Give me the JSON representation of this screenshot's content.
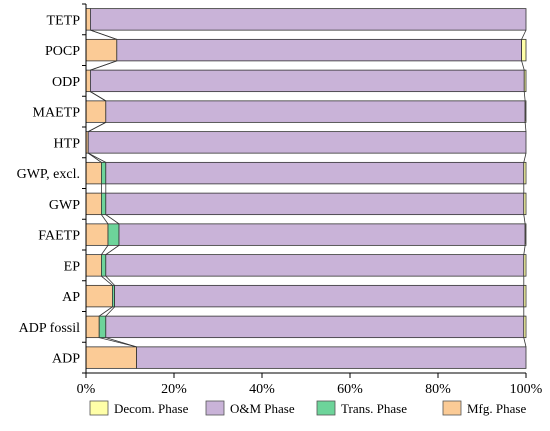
{
  "chart_data": {
    "type": "bar",
    "orientation": "horizontal",
    "stacked": true,
    "categories": [
      "TETP",
      "POCP",
      "ODP",
      "MAETP",
      "HTP",
      "GWP, excl.",
      "GWP",
      "FAETP",
      "EP",
      "AP",
      "ADP fossil",
      "ADP"
    ],
    "series": [
      {
        "name": "Mfg. Phase",
        "color": "#fbcb96",
        "values": [
          1.0,
          7.0,
          1.0,
          4.5,
          0.5,
          3.5,
          3.5,
          5.0,
          3.5,
          6.0,
          3.0,
          11.5
        ]
      },
      {
        "name": "Trans. Phase",
        "color": "#6dd49a",
        "values": [
          0.0,
          0.0,
          0.0,
          0.0,
          0.0,
          1.0,
          1.0,
          2.5,
          1.0,
          0.5,
          1.5,
          0.0
        ]
      },
      {
        "name": "O&M Phase",
        "color": "#c9b3d8",
        "values": [
          99.0,
          92.0,
          98.6,
          95.3,
          99.5,
          95.0,
          95.0,
          92.3,
          95.0,
          93.0,
          95.0,
          88.5
        ]
      },
      {
        "name": "Decom. Phase",
        "color": "#ffffa8",
        "values": [
          0.0,
          1.0,
          0.4,
          0.2,
          0.0,
          0.5,
          0.5,
          0.2,
          0.5,
          0.5,
          0.5,
          0.0
        ]
      }
    ],
    "x_ticks": [
      "0%",
      "20%",
      "40%",
      "60%",
      "80%",
      "100%"
    ],
    "xlim": [
      0,
      100
    ],
    "legend_order": [
      "Decom. Phase",
      "O&M Phase",
      "Trans. Phase",
      "Mfg. Phase"
    ],
    "legend_position": "bottom",
    "grid": false,
    "xlabel": "",
    "ylabel": "",
    "title": ""
  }
}
